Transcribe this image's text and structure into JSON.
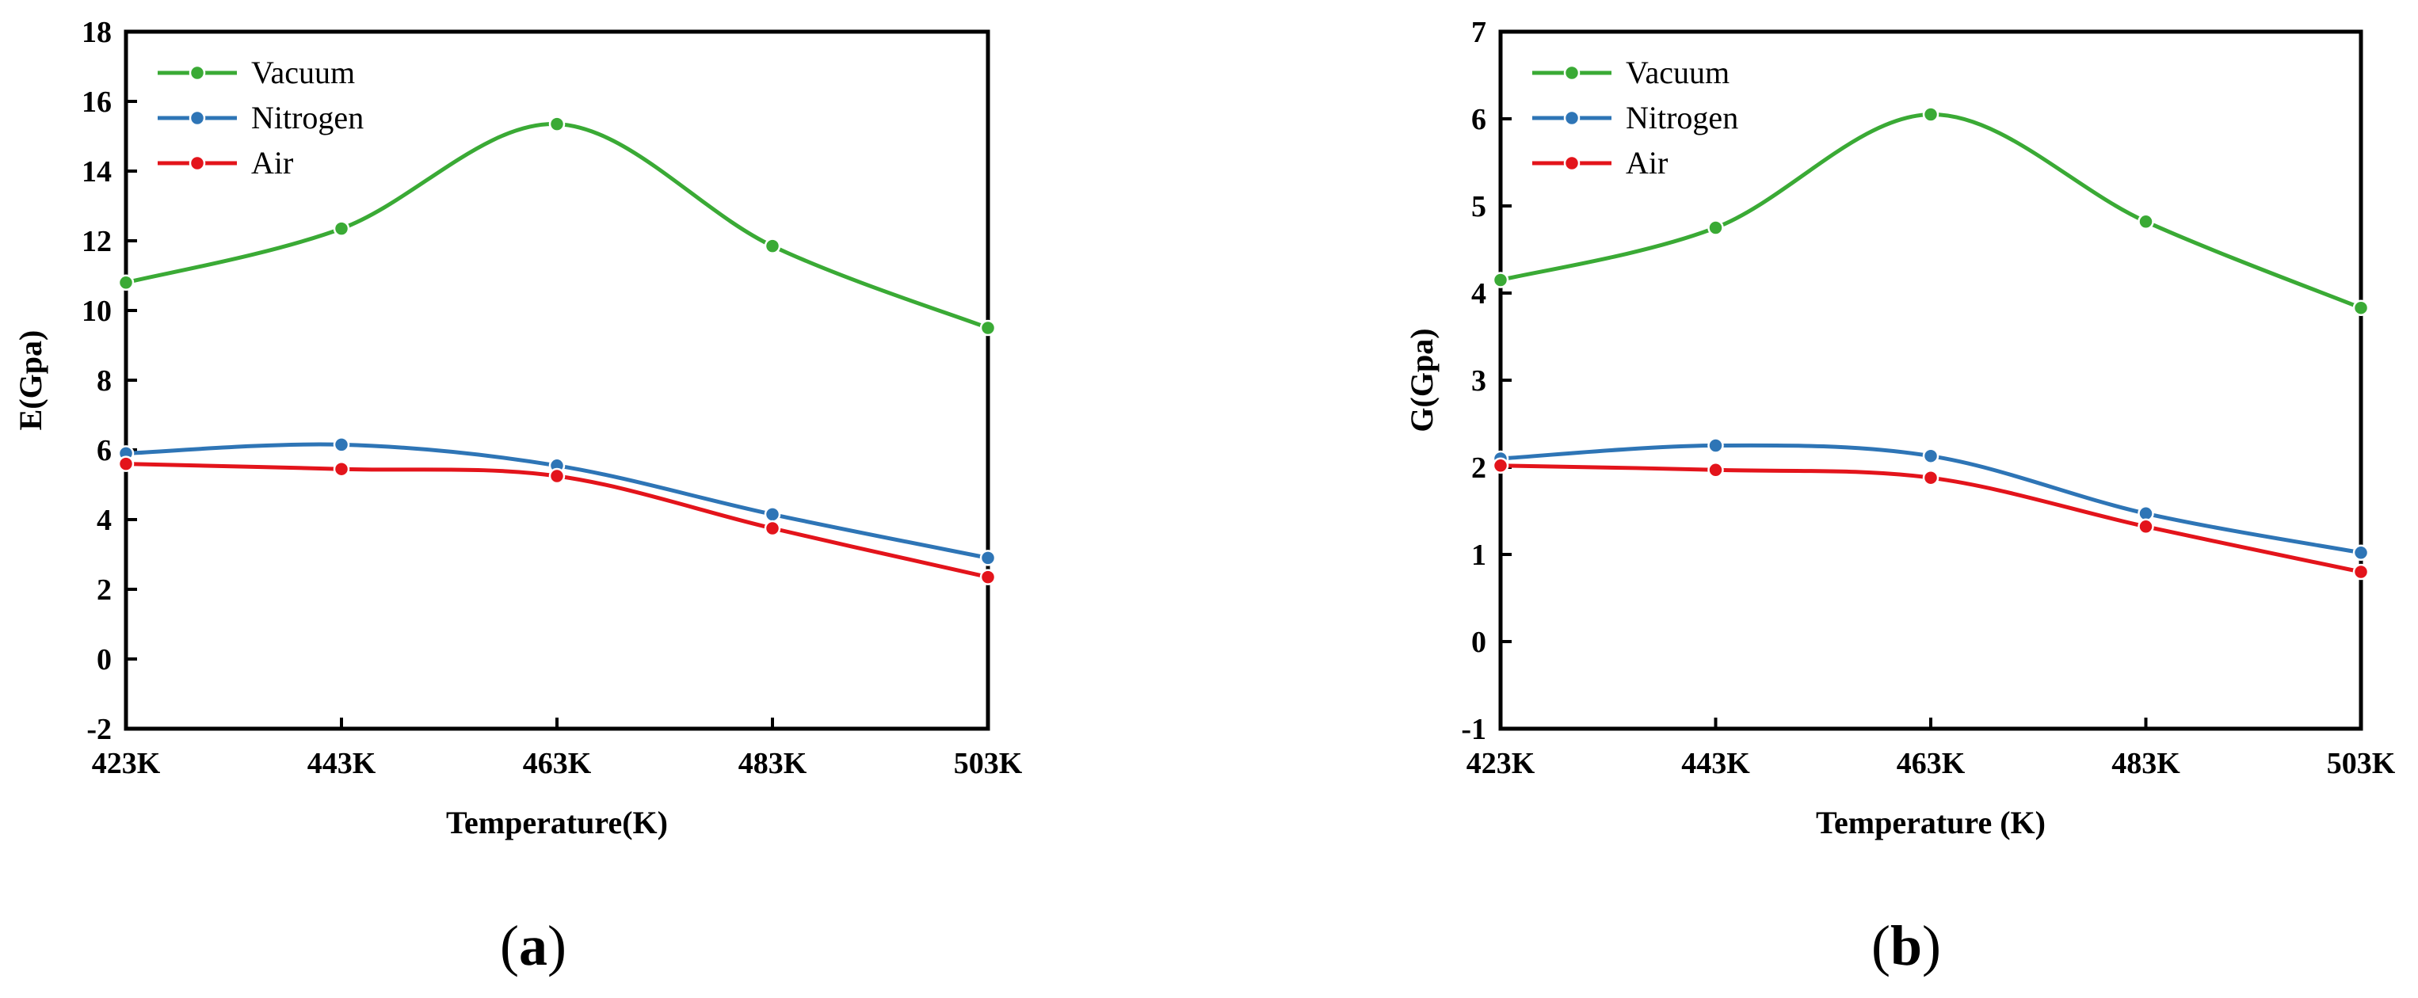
{
  "chart_data": [
    {
      "id": "a",
      "type": "line",
      "panel_label_open": "(",
      "panel_label_letter": "a",
      "panel_label_close": ")",
      "xlabel": "Temperature(K)",
      "ylabel": "E(Gpa)",
      "categories": [
        "423K",
        "443K",
        "463K",
        "483K",
        "503K"
      ],
      "ylim": [
        -2,
        18
      ],
      "yticks": [
        -2,
        0,
        2,
        4,
        6,
        8,
        10,
        12,
        14,
        16,
        18
      ],
      "legend_position": "top-left",
      "series": [
        {
          "name": "Vacuum",
          "color": "#3aaa35",
          "values": [
            10.8,
            12.35,
            15.35,
            11.85,
            9.5
          ]
        },
        {
          "name": "Nitrogen",
          "color": "#2e75b6",
          "values": [
            5.9,
            6.15,
            5.55,
            4.15,
            2.9
          ]
        },
        {
          "name": "Air",
          "color": "#e3141b",
          "values": [
            5.6,
            5.45,
            5.25,
            3.75,
            2.35
          ]
        }
      ]
    },
    {
      "id": "b",
      "type": "line",
      "panel_label_open": "(",
      "panel_label_letter": "b",
      "panel_label_close": ")",
      "xlabel": "Temperature (K)",
      "ylabel": "G(Gpa)",
      "categories": [
        "423K",
        "443K",
        "463K",
        "483K",
        "503K"
      ],
      "ylim": [
        -1,
        7
      ],
      "yticks": [
        -1,
        0,
        1,
        2,
        3,
        4,
        5,
        6,
        7
      ],
      "legend_position": "top-left",
      "series": [
        {
          "name": "Vacuum",
          "color": "#3aaa35",
          "values": [
            4.15,
            4.75,
            6.05,
            4.82,
            3.83
          ]
        },
        {
          "name": "Nitrogen",
          "color": "#2e75b6",
          "values": [
            2.1,
            2.25,
            2.13,
            1.47,
            1.02
          ]
        },
        {
          "name": "Air",
          "color": "#e3141b",
          "values": [
            2.02,
            1.97,
            1.88,
            1.32,
            0.8
          ]
        }
      ]
    }
  ]
}
